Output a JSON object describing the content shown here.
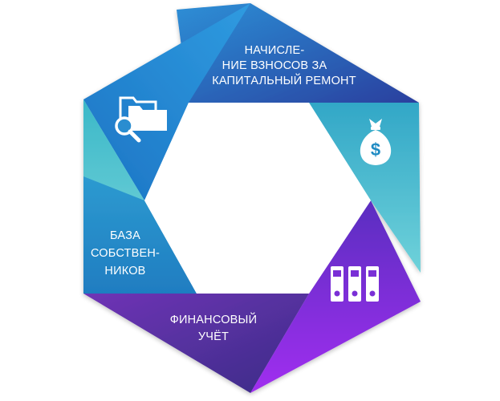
{
  "segments": [
    {
      "id": "accruals",
      "lines": [
        "НАЧИСЛЕ-",
        "НИЕ ВЗНОСОВ ЗА",
        "КАПИТАЛЬНЫЙ РЕМОНТ"
      ],
      "icon": "money-bag-dollar-icon"
    },
    {
      "id": "owners",
      "lines": [
        "БАЗА",
        "СОБСТВЕН-",
        "НИКОВ"
      ],
      "icon": "folder-search-icon"
    },
    {
      "id": "accounting",
      "lines": [
        "ФИНАНСОВЫЙ",
        "УЧЁТ"
      ],
      "icon": "binders-icon"
    }
  ],
  "colors": {
    "teal": "#49c4cf",
    "blue": "#1f7fc7",
    "navy": "#2d3a9e",
    "violet": "#6a2fb0",
    "purple": "#8a2be2",
    "icon": "#ffffff"
  }
}
